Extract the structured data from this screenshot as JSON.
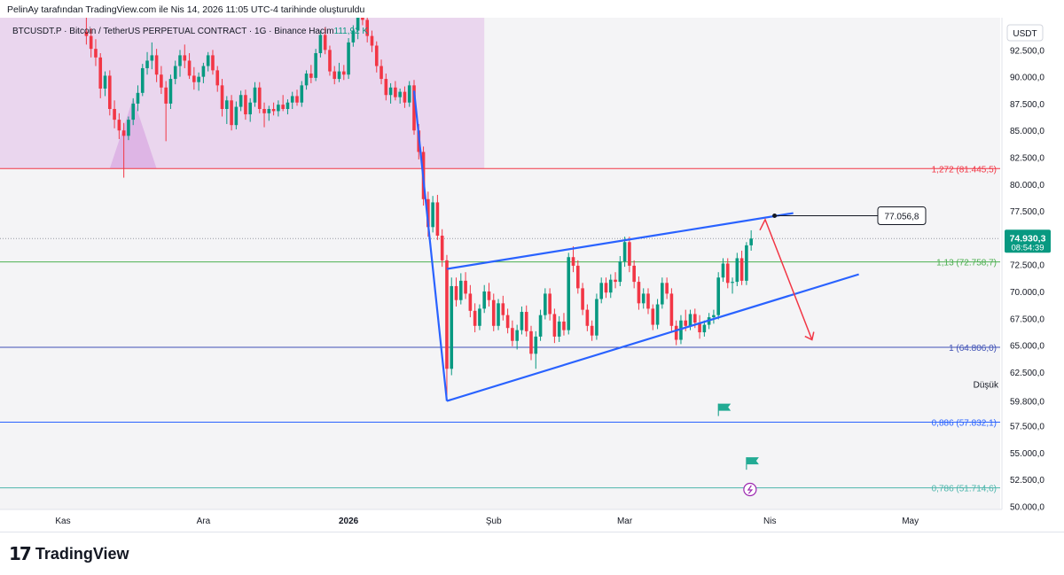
{
  "attribution": "PelinAy tarafından TradingView.com ile Nis 14, 2026 11:05 UTC-4 tarihinde oluşturuldu",
  "legend": {
    "symbol": "BTCUSDT.P · Bitcoin / TetherUS PERPETUAL CONTRACT · 1G · Binance",
    "volume_label": "Hacim",
    "volume_value": "111,92 K"
  },
  "brand": {
    "mark": "17",
    "name": "TradingView"
  },
  "colors": {
    "up": "#089981",
    "down": "#f23645",
    "trendline": "#2962ff",
    "arrow": "#f23645",
    "zone": "#e1bee7",
    "fib_1272": "#f23645",
    "fib_113": "#4caf50",
    "fib_1": "#3f51b5",
    "fib_0886": "#2962ff",
    "fib_0786": "#4db6ac"
  },
  "chart_data": {
    "type": "candlestick",
    "quote_currency": "USDT",
    "y_ticks": [
      "92.500,0",
      "90.000,0",
      "87.500,0",
      "85.000,0",
      "82.500,0",
      "80.000,0",
      "77.500,0",
      "75.000,0",
      "72.500,0",
      "70.000,0",
      "67.500,0",
      "65.000,0",
      "62.500,0",
      "57.500,0",
      "55.000,0",
      "52.500,0",
      "50.000,0"
    ],
    "y_range": [
      49700,
      95500
    ],
    "x_labels": [
      {
        "label": "Kas",
        "day": 0
      },
      {
        "label": "Ara",
        "day": 30
      },
      {
        "label": "2026",
        "day": 61
      },
      {
        "label": "Şub",
        "day": 92
      },
      {
        "label": "Mar",
        "day": 120
      },
      {
        "label": "Nis",
        "day": 151
      },
      {
        "label": "May",
        "day": 181
      }
    ],
    "last_price": {
      "value": 74930.3,
      "label": "74.930,3",
      "countdown": "08:54:39"
    },
    "target_label": {
      "value": 77056.8,
      "label": "77.056,8"
    },
    "low_marker": {
      "label": "Düşük",
      "value": 59800,
      "price_label": "59.800,0"
    },
    "fib_levels": [
      {
        "ratio": "1,272",
        "value": 81445.5,
        "label": "1,272 (81.445,5)",
        "color": "#f23645"
      },
      {
        "ratio": "1,13",
        "value": 72758.7,
        "label": "1,13 (72.758,7)",
        "color": "#4caf50"
      },
      {
        "ratio": "1",
        "value": 64806.0,
        "label": "1 (64.806,0)",
        "color": "#3f51b5"
      },
      {
        "ratio": "0,886",
        "value": 57832.1,
        "label": "0,886 (57.832,1)",
        "color": "#2962ff"
      },
      {
        "ratio": "0,786",
        "value": 51714.6,
        "label": "0,786 (51.714,6)",
        "color": "#4db6ac"
      }
    ],
    "candles": [
      [
        5,
        94200,
        95800,
        93000,
        93800
      ],
      [
        6,
        93800,
        94500,
        91800,
        92600
      ],
      [
        7,
        92600,
        93500,
        91000,
        91800
      ],
      [
        8,
        91800,
        92200,
        88000,
        88900
      ],
      [
        9,
        88900,
        90500,
        88200,
        90100
      ],
      [
        10,
        90100,
        90600,
        86400,
        87000
      ],
      [
        11,
        87000,
        87800,
        85200,
        86000
      ],
      [
        12,
        86000,
        86600,
        84200,
        85000
      ],
      [
        13,
        85000,
        85700,
        80600,
        84500
      ],
      [
        14,
        84500,
        86300,
        84100,
        86000
      ],
      [
        15,
        86000,
        88000,
        85500,
        87500
      ],
      [
        16,
        87500,
        89200,
        86800,
        88500
      ],
      [
        17,
        88500,
        91200,
        88200,
        90800
      ],
      [
        18,
        90800,
        92300,
        90200,
        91500
      ],
      [
        19,
        91500,
        93200,
        90700,
        92000
      ],
      [
        20,
        92000,
        92600,
        89500,
        90200
      ],
      [
        21,
        90200,
        91000,
        88400,
        89000
      ],
      [
        22,
        89000,
        89600,
        84000,
        87500
      ],
      [
        23,
        87500,
        90200,
        87000,
        89800
      ],
      [
        24,
        89800,
        91500,
        89300,
        91000
      ],
      [
        25,
        91000,
        92500,
        90000,
        92000
      ],
      [
        26,
        92000,
        93000,
        90800,
        91500
      ],
      [
        27,
        91500,
        92200,
        89800,
        90100
      ],
      [
        28,
        90100,
        90900,
        88800,
        89500
      ],
      [
        29,
        89500,
        90400,
        88700,
        90000
      ],
      [
        30,
        90000,
        91300,
        89400,
        91000
      ],
      [
        31,
        91000,
        92300,
        90500,
        92000
      ],
      [
        32,
        92000,
        92500,
        90200,
        90600
      ],
      [
        33,
        90600,
        91000,
        88600,
        89200
      ],
      [
        34,
        89200,
        89800,
        86300,
        87000
      ],
      [
        35,
        87000,
        88200,
        85600,
        87800
      ],
      [
        36,
        87800,
        88300,
        85000,
        85500
      ],
      [
        37,
        85500,
        87700,
        85100,
        87200
      ],
      [
        38,
        87200,
        88700,
        86800,
        88300
      ],
      [
        39,
        88300,
        88800,
        86000,
        86500
      ],
      [
        40,
        86500,
        88000,
        85800,
        87600
      ],
      [
        41,
        87600,
        89500,
        87200,
        89000
      ],
      [
        42,
        89000,
        89500,
        86600,
        87000
      ],
      [
        43,
        87000,
        87600,
        85300,
        86600
      ],
      [
        44,
        86600,
        87300,
        85900,
        87000
      ],
      [
        45,
        87000,
        87600,
        86400,
        86800
      ],
      [
        46,
        86800,
        87800,
        86300,
        87400
      ],
      [
        47,
        87400,
        88300,
        86800,
        87000
      ],
      [
        48,
        87000,
        87900,
        86500,
        87600
      ],
      [
        49,
        87600,
        88600,
        87000,
        88200
      ],
      [
        50,
        88200,
        88800,
        87300,
        87600
      ],
      [
        51,
        87600,
        89600,
        87200,
        89200
      ],
      [
        52,
        89200,
        90600,
        88800,
        90300
      ],
      [
        53,
        90300,
        91100,
        89400,
        89900
      ],
      [
        54,
        89900,
        92600,
        89600,
        92200
      ],
      [
        55,
        92200,
        94300,
        91800,
        93900
      ],
      [
        56,
        93900,
        94600,
        92100,
        92500
      ],
      [
        57,
        92500,
        92900,
        90100,
        90500
      ],
      [
        58,
        90500,
        91000,
        89300,
        89800
      ],
      [
        59,
        89800,
        91300,
        89500,
        90500
      ],
      [
        60,
        90500,
        91100,
        89700,
        90200
      ],
      [
        61,
        90200,
        93600,
        89800,
        93200
      ],
      [
        62,
        93200,
        94800,
        92800,
        94300
      ],
      [
        63,
        94300,
        96400,
        93500,
        95800
      ],
      [
        64,
        95800,
        97000,
        94800,
        95300
      ],
      [
        65,
        95300,
        95800,
        93200,
        93800
      ],
      [
        66,
        93800,
        94300,
        92300,
        92900
      ],
      [
        67,
        92900,
        93300,
        90400,
        91000
      ],
      [
        68,
        91000,
        91600,
        89300,
        89800
      ],
      [
        69,
        89800,
        90300,
        87800,
        88300
      ],
      [
        70,
        88300,
        89400,
        87500,
        89000
      ],
      [
        71,
        89000,
        89600,
        87800,
        88100
      ],
      [
        72,
        88100,
        88900,
        87500,
        88600
      ],
      [
        73,
        88600,
        89100,
        87100,
        87600
      ],
      [
        74,
        87600,
        89600,
        87200,
        89200
      ],
      [
        75,
        89200,
        89700,
        84600,
        85000
      ],
      [
        76,
        85000,
        85600,
        82300,
        83000
      ],
      [
        77,
        83000,
        83500,
        78000,
        78600
      ],
      [
        78,
        78600,
        79300,
        75100,
        76000
      ],
      [
        79,
        76000,
        78900,
        75500,
        78300
      ],
      [
        80,
        78300,
        79000,
        74800,
        75200
      ],
      [
        81,
        75200,
        75800,
        72300,
        72900
      ],
      [
        82,
        72900,
        73400,
        60000,
        62800
      ],
      [
        83,
        62800,
        71300,
        62200,
        70500
      ],
      [
        84,
        70500,
        71300,
        68600,
        69200
      ],
      [
        85,
        69200,
        71700,
        68800,
        71000
      ],
      [
        86,
        71000,
        71800,
        69300,
        69800
      ],
      [
        87,
        69800,
        70600,
        67600,
        68200
      ],
      [
        88,
        68200,
        68900,
        66200,
        66800
      ],
      [
        89,
        66800,
        68800,
        66400,
        68400
      ],
      [
        90,
        68400,
        70600,
        68000,
        70000
      ],
      [
        91,
        70000,
        70800,
        68600,
        69200
      ],
      [
        92,
        69200,
        69800,
        66300,
        66800
      ],
      [
        93,
        66800,
        69300,
        66400,
        68900
      ],
      [
        94,
        68900,
        69600,
        67300,
        67800
      ],
      [
        95,
        67800,
        68400,
        66100,
        66600
      ],
      [
        96,
        66600,
        67300,
        64900,
        65400
      ],
      [
        97,
        65400,
        66900,
        64600,
        66400
      ],
      [
        98,
        66400,
        68600,
        66000,
        68100
      ],
      [
        99,
        68100,
        68700,
        65800,
        66300
      ],
      [
        100,
        66300,
        66800,
        63600,
        64200
      ],
      [
        101,
        64200,
        66300,
        62800,
        65800
      ],
      [
        102,
        65800,
        68300,
        65400,
        67800
      ],
      [
        103,
        67800,
        70300,
        67400,
        69800
      ],
      [
        104,
        69800,
        70300,
        67300,
        67900
      ],
      [
        105,
        67900,
        68400,
        65200,
        65800
      ],
      [
        106,
        65800,
        67700,
        65300,
        67200
      ],
      [
        107,
        67200,
        68000,
        65900,
        66400
      ],
      [
        108,
        66400,
        73600,
        66000,
        73200
      ],
      [
        109,
        73200,
        74200,
        71800,
        72400
      ],
      [
        110,
        72400,
        72900,
        69800,
        70300
      ],
      [
        111,
        70300,
        70800,
        67800,
        68300
      ],
      [
        112,
        68300,
        68800,
        66300,
        66800
      ],
      [
        113,
        66800,
        67300,
        65400,
        65900
      ],
      [
        114,
        65900,
        69800,
        65500,
        69300
      ],
      [
        115,
        69300,
        71300,
        68900,
        70800
      ],
      [
        116,
        70800,
        71300,
        69400,
        69900
      ],
      [
        117,
        69900,
        71600,
        69400,
        71100
      ],
      [
        118,
        71100,
        71800,
        70300,
        70900
      ],
      [
        119,
        70900,
        73300,
        70500,
        72800
      ],
      [
        120,
        72800,
        75100,
        72300,
        74600
      ],
      [
        121,
        74600,
        75100,
        71800,
        72400
      ],
      [
        122,
        72400,
        72900,
        70300,
        70900
      ],
      [
        123,
        70900,
        71400,
        68300,
        68900
      ],
      [
        124,
        68900,
        70300,
        68400,
        69800
      ],
      [
        125,
        69800,
        70300,
        67900,
        68400
      ],
      [
        126,
        68400,
        68800,
        66400,
        66900
      ],
      [
        127,
        66900,
        69300,
        66500,
        68800
      ],
      [
        128,
        68800,
        71300,
        68400,
        70800
      ],
      [
        129,
        70800,
        71300,
        69300,
        69800
      ],
      [
        130,
        69800,
        70300,
        66300,
        66800
      ],
      [
        131,
        66800,
        67300,
        65000,
        65500
      ],
      [
        132,
        65500,
        67800,
        65100,
        67300
      ],
      [
        133,
        67300,
        68300,
        66300,
        66800
      ],
      [
        134,
        66800,
        68300,
        66400,
        67900
      ],
      [
        135,
        67900,
        68400,
        66600,
        67100
      ],
      [
        136,
        67100,
        67800,
        65600,
        66200
      ],
      [
        137,
        66200,
        67300,
        65800,
        66900
      ],
      [
        138,
        66900,
        68000,
        66500,
        67600
      ],
      [
        139,
        67600,
        68300,
        67000,
        67800
      ],
      [
        140,
        67800,
        71800,
        67400,
        71300
      ],
      [
        141,
        71300,
        73100,
        70900,
        72600
      ],
      [
        142,
        72600,
        73100,
        70300,
        70800
      ],
      [
        143,
        70800,
        71300,
        69800,
        70900
      ],
      [
        144,
        70900,
        73600,
        70500,
        73100
      ],
      [
        145,
        73100,
        73800,
        70600,
        71000
      ],
      [
        146,
        71000,
        74600,
        70600,
        74300
      ],
      [
        147,
        74300,
        75700,
        73800,
        74930
      ]
    ],
    "purple_zone": {
      "x_from_day": 0,
      "x_to_day": 90,
      "y_from": 81445.5,
      "y_to": 95500
    },
    "trendlines": [
      {
        "name": "drop-line",
        "points": [
          [
            75,
            88700
          ],
          [
            82,
            59800
          ]
        ]
      },
      {
        "name": "wedge-lower",
        "points": [
          [
            82,
            59800
          ],
          [
            170,
            71600
          ]
        ]
      },
      {
        "name": "wedge-upper",
        "points": [
          [
            82,
            72100
          ],
          [
            156,
            77300
          ]
        ]
      }
    ],
    "red_arrow": {
      "points": [
        [
          150,
          76700
        ],
        [
          160,
          65500
        ]
      ]
    },
    "flags": [
      {
        "day": 140,
        "value": 58400
      },
      {
        "day": 146,
        "value": 53400
      }
    ],
    "lightning_marker": {
      "day": 146,
      "value": 50400
    },
    "grid": false
  }
}
